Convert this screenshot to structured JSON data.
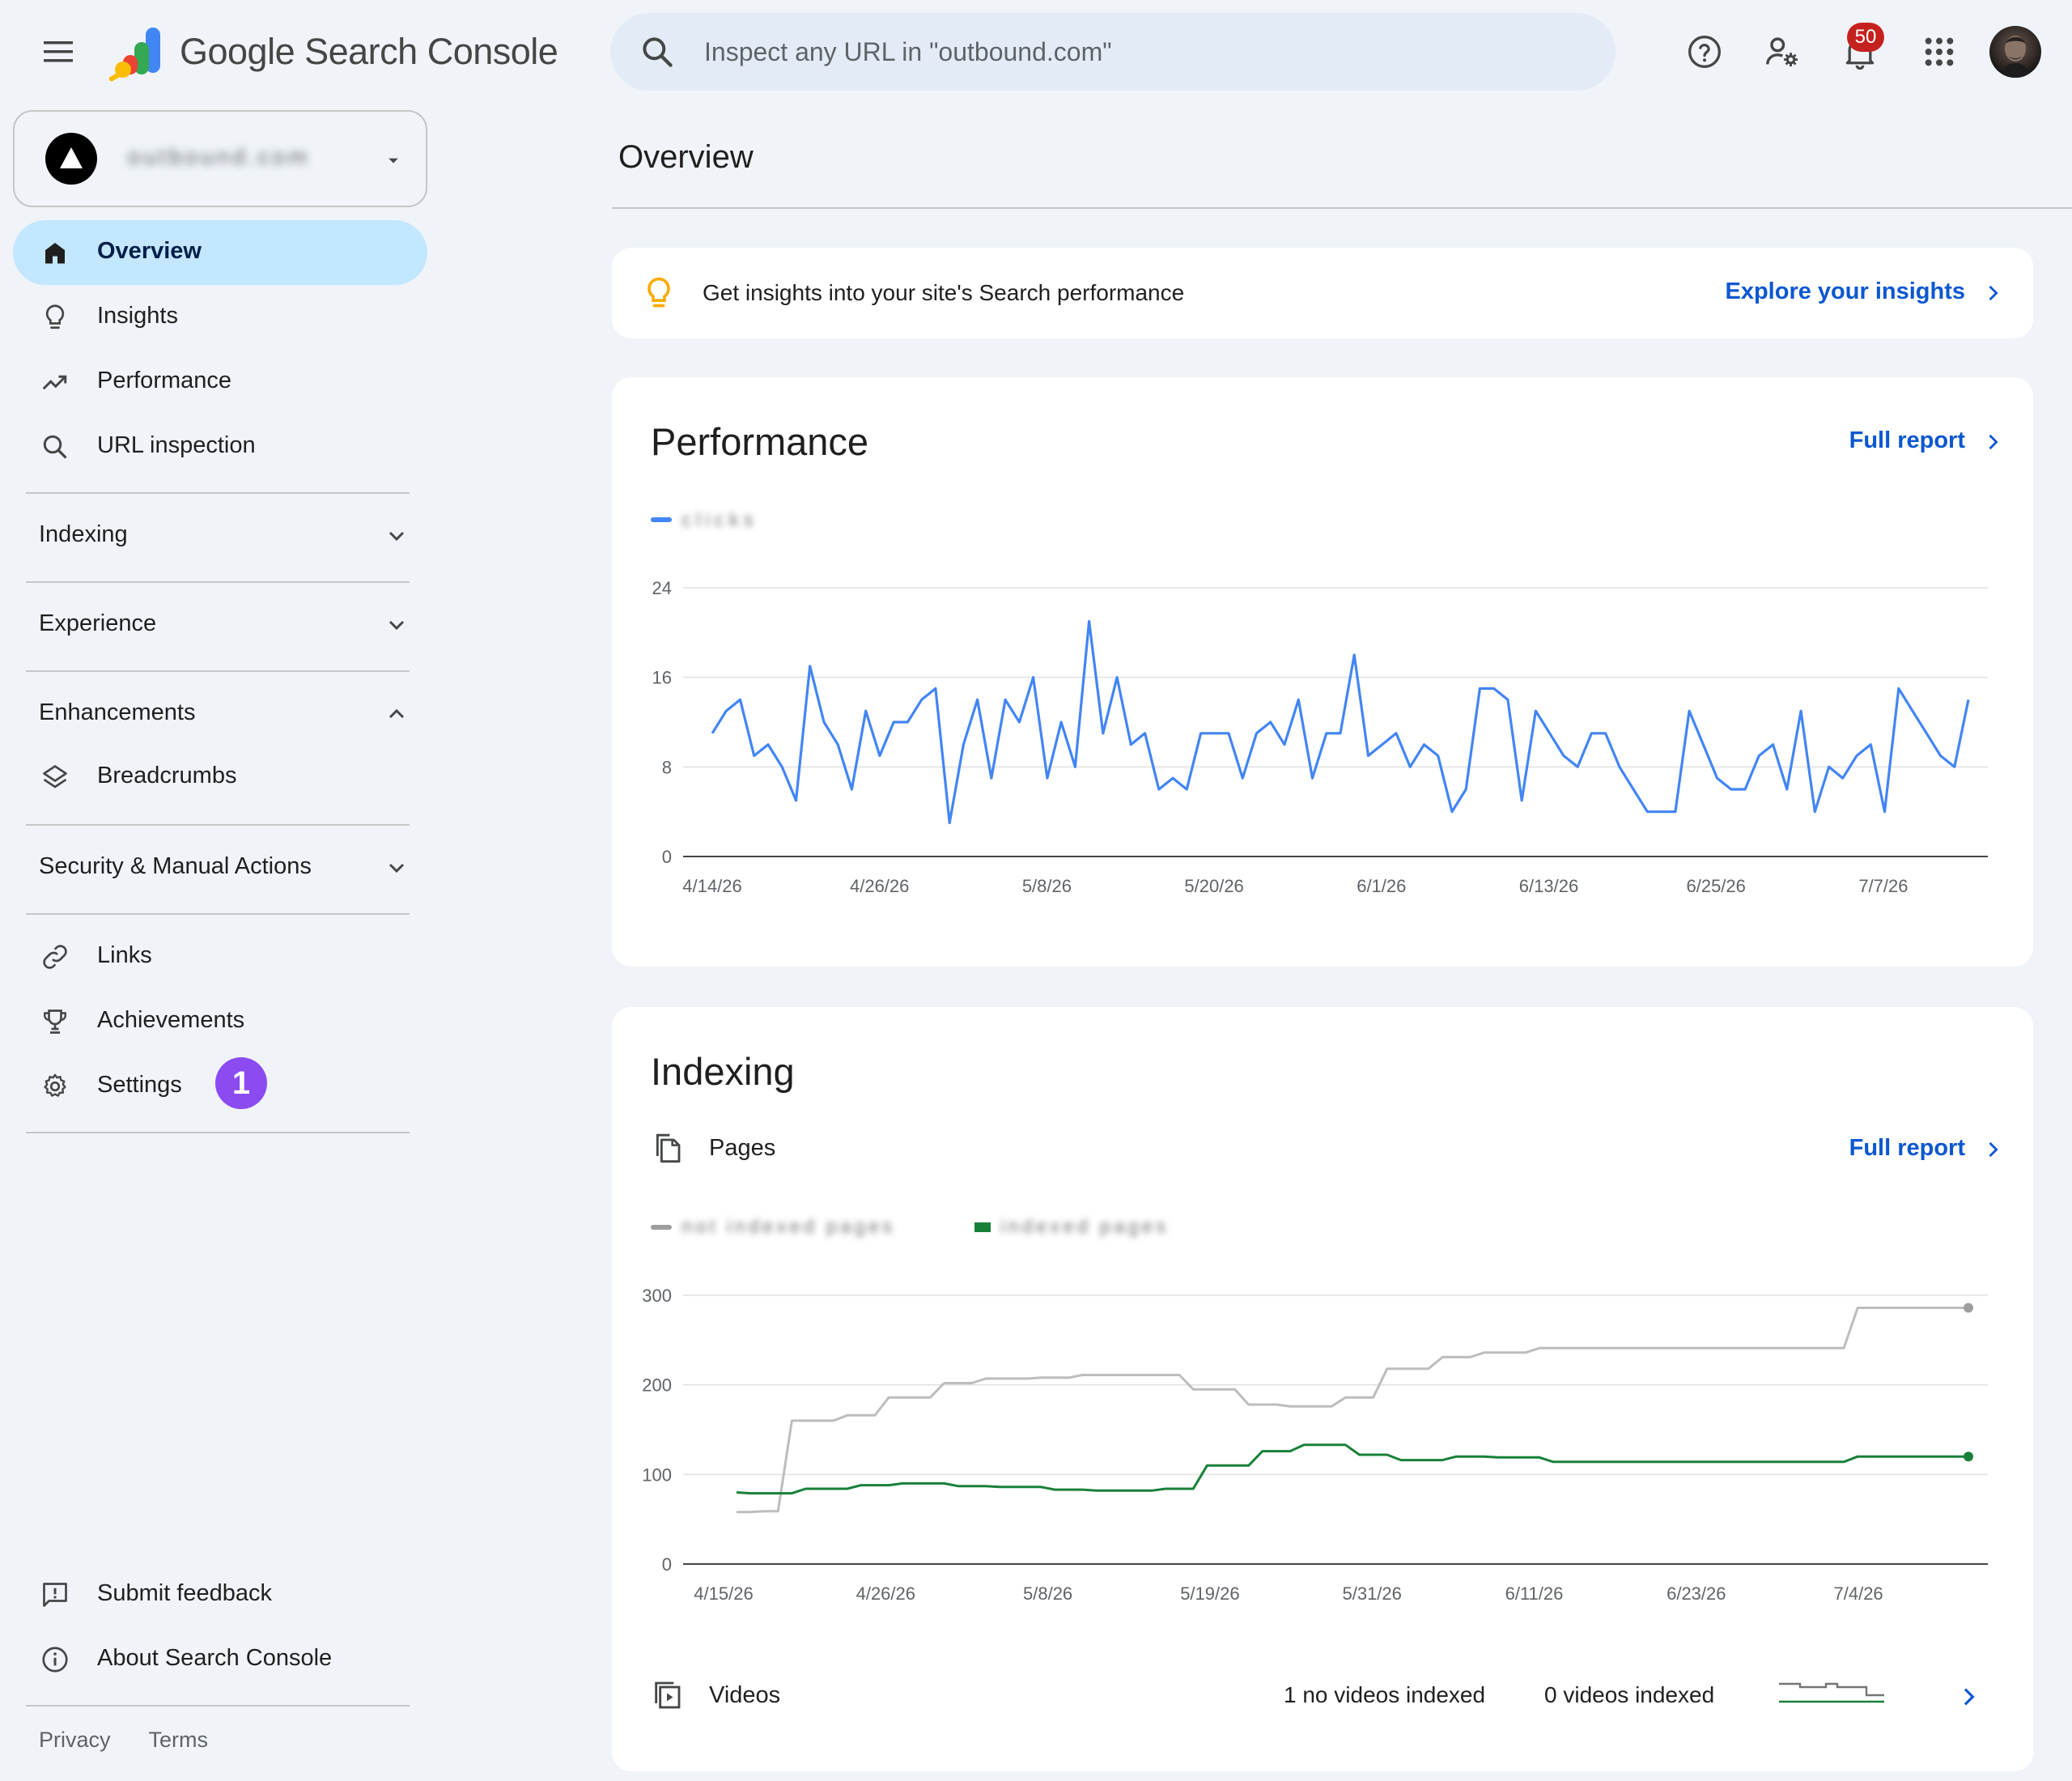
{
  "header": {
    "product_name": "Google Search Console",
    "search_placeholder": "Inspect any URL in \"outbound.com\"",
    "notification_count": "50"
  },
  "property": {
    "name": "outbound.com"
  },
  "sidebar": {
    "items": [
      {
        "label": "Overview",
        "active": true
      },
      {
        "label": "Insights"
      },
      {
        "label": "Performance"
      },
      {
        "label": "URL inspection"
      }
    ],
    "sections": {
      "indexing": "Indexing",
      "experience": "Experience",
      "enhancements": "Enhancements",
      "breadcrumbs": "Breadcrumbs",
      "security": "Security & Manual Actions"
    },
    "bottom_items": [
      {
        "label": "Links"
      },
      {
        "label": "Achievements"
      },
      {
        "label": "Settings"
      }
    ],
    "step_badge": "1",
    "footer_items": [
      {
        "label": "Submit feedback"
      },
      {
        "label": "About Search Console"
      }
    ],
    "footer_links": [
      "Privacy",
      "Terms"
    ]
  },
  "main": {
    "title": "Overview",
    "insights": {
      "text": "Get insights into your site's Search performance",
      "link": "Explore your insights"
    },
    "performance": {
      "title": "Performance",
      "link": "Full report",
      "legend": "clicks"
    },
    "indexing": {
      "title": "Indexing",
      "link": "Full report",
      "pages_label": "Pages",
      "legend_not_indexed": "not indexed pages",
      "legend_indexed": "indexed pages",
      "videos_label": "Videos",
      "videos_stat1": "1 no videos indexed",
      "videos_stat2": "0 videos indexed"
    }
  },
  "colors": {
    "accent": "#0b57d0",
    "active_nav": "#c2e7ff",
    "perf_line": "#4285f4",
    "not_indexed_line": "#bdbdbd",
    "indexed_line": "#188038",
    "badge": "#8c4bf1"
  },
  "chart_data": [
    {
      "type": "line",
      "title": "Performance",
      "x_ticks": [
        "4/14/26",
        "4/26/26",
        "5/8/26",
        "5/20/26",
        "6/1/26",
        "6/13/26",
        "6/25/26",
        "7/7/26"
      ],
      "x_range": [
        "2026-04-14",
        "2026-07-13"
      ],
      "y_ticks": [
        0,
        8,
        16,
        24
      ],
      "ylim": [
        0,
        24
      ],
      "grid": true,
      "series": [
        {
          "name": "clicks",
          "color": "#4285f4",
          "values": [
            11,
            13,
            14,
            9,
            10,
            8,
            5,
            17,
            12,
            10,
            6,
            13,
            9,
            12,
            12,
            14,
            15,
            3,
            10,
            14,
            7,
            14,
            12,
            16,
            7,
            12,
            8,
            21,
            11,
            16,
            10,
            11,
            6,
            7,
            6,
            11,
            11,
            11,
            7,
            11,
            12,
            10,
            14,
            7,
            11,
            11,
            18,
            9,
            10,
            11,
            8,
            10,
            9,
            4,
            6,
            15,
            15,
            14,
            5,
            13,
            11,
            9,
            8,
            11,
            11,
            8,
            6,
            4,
            4,
            4,
            13,
            10,
            7,
            6,
            6,
            9,
            10,
            6,
            13,
            4,
            8,
            7,
            9,
            10,
            4,
            15,
            13,
            11,
            9,
            8,
            14
          ]
        }
      ]
    },
    {
      "type": "line",
      "title": "Indexing",
      "x_ticks": [
        "4/15/26",
        "4/26/26",
        "5/8/26",
        "5/19/26",
        "5/31/26",
        "6/11/26",
        "6/23/26",
        "7/4/26"
      ],
      "x_range": [
        "2026-04-15",
        "2026-07-12"
      ],
      "y_ticks": [
        0,
        100,
        200,
        300
      ],
      "ylim": [
        0,
        300
      ],
      "grid": true,
      "series": [
        {
          "name": "not indexed pages",
          "color": "#bdbdbd",
          "values": [
            58,
            58,
            59,
            59,
            160,
            160,
            160,
            160,
            166,
            166,
            166,
            186,
            186,
            186,
            186,
            202,
            202,
            202,
            207,
            207,
            207,
            207,
            208,
            208,
            208,
            211,
            211,
            211,
            211,
            211,
            211,
            211,
            211,
            195,
            195,
            195,
            195,
            178,
            178,
            178,
            176,
            176,
            176,
            176,
            186,
            186,
            186,
            218,
            218,
            218,
            218,
            231,
            231,
            231,
            236,
            236,
            236,
            236,
            241,
            241,
            241,
            241,
            241,
            241,
            241,
            241,
            241,
            241,
            241,
            241,
            241,
            241,
            241,
            241,
            241,
            241,
            241,
            241,
            241,
            241,
            241,
            286,
            286,
            286,
            286,
            286,
            286,
            286,
            286,
            286
          ]
        },
        {
          "name": "indexed pages",
          "color": "#188038",
          "values": [
            80,
            79,
            79,
            79,
            79,
            84,
            84,
            84,
            84,
            88,
            88,
            88,
            90,
            90,
            90,
            90,
            87,
            87,
            87,
            86,
            86,
            86,
            86,
            83,
            83,
            83,
            82,
            82,
            82,
            82,
            82,
            84,
            84,
            84,
            110,
            110,
            110,
            110,
            126,
            126,
            126,
            133,
            133,
            133,
            133,
            122,
            122,
            122,
            116,
            116,
            116,
            116,
            120,
            120,
            120,
            119,
            119,
            119,
            119,
            114,
            114,
            114,
            114,
            114,
            114,
            114,
            114,
            114,
            114,
            114,
            114,
            114,
            114,
            114,
            114,
            114,
            114,
            114,
            114,
            114,
            114,
            120,
            120,
            120,
            120,
            120,
            120,
            120,
            120,
            120
          ]
        }
      ]
    }
  ]
}
